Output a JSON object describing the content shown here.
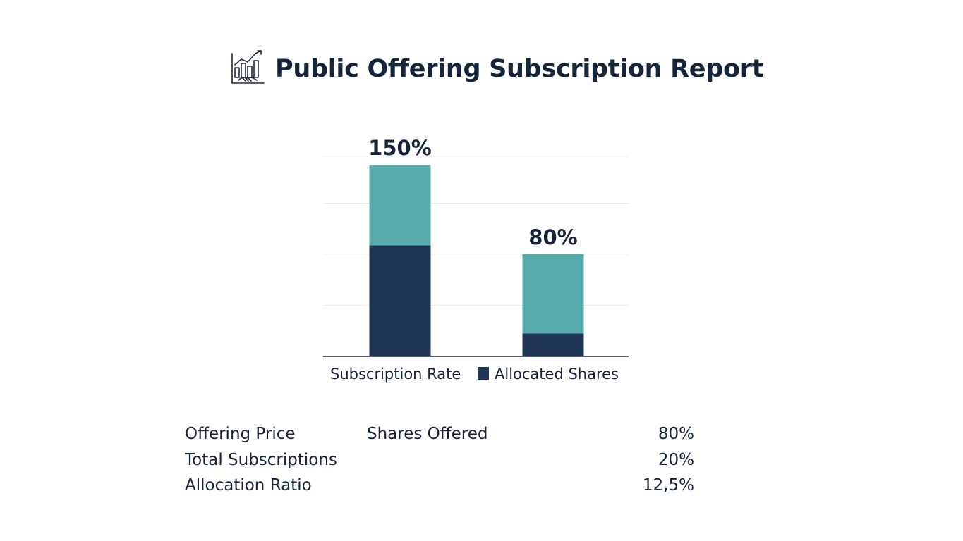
{
  "header": {
    "title": "Public Offering Subscription Report",
    "logo_icon": "ipo-growth-handshake-icon"
  },
  "chart_data": {
    "type": "bar",
    "stacked": true,
    "categories": [
      "Subscription Rate",
      "Allocated Shares"
    ],
    "series": [
      {
        "name": "Allocated Shares",
        "values": [
          87,
          18
        ],
        "color": "#1e3553"
      },
      {
        "values": [
          63,
          62
        ],
        "color": "#55acab"
      }
    ],
    "totals": [
      150,
      80
    ],
    "data_labels": [
      "150%",
      "80%"
    ],
    "ylim": [
      0,
      160
    ],
    "grid": true,
    "legend_placement": "bottom"
  },
  "legend": {
    "category_label": "Subscription Rate",
    "series_label": "Allocated Shares"
  },
  "stats": [
    {
      "label": "Offering Price",
      "extra": "Shares Offered",
      "value": "80%"
    },
    {
      "label": "Total Subscriptions",
      "extra": "",
      "value": "20%"
    },
    {
      "label": "Allocation Ratio",
      "extra": "",
      "value": "12,5%"
    }
  ]
}
